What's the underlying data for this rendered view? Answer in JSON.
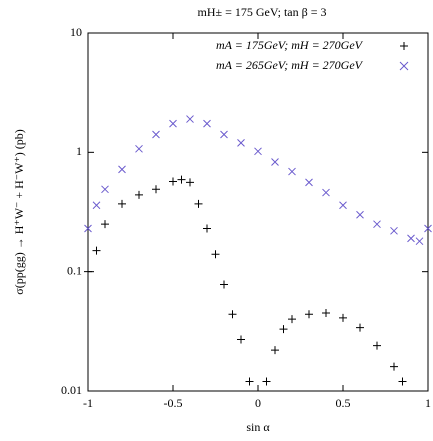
{
  "chart_data": {
    "type": "scatter",
    "title": "mH± = 175 GeV; tan β = 3",
    "x_label": "sin α",
    "y_label": "σ(pp(gg) → H⁺W⁻ + H⁻W⁺) (pb)",
    "log_y": true,
    "legend": "top-right",
    "xlim": [
      -1,
      1
    ],
    "ylim": [
      0.01,
      10
    ],
    "xticks": [
      -1,
      -0.5,
      0,
      0.5,
      1
    ],
    "yticks": [
      0.01,
      0.1,
      1,
      10
    ],
    "series": [
      {
        "name": "mA = 175GeV; mH = 270GeV",
        "color": "#000000",
        "marker": "plus",
        "x": [
          -1,
          -0.95,
          -0.9,
          -0.8,
          -0.7,
          -0.6,
          -0.5,
          -0.45,
          -0.4,
          -0.35,
          -0.3,
          -0.25,
          -0.2,
          -0.15,
          -0.1,
          -0.05,
          0.05,
          0.1,
          0.15,
          0.2,
          0.3,
          0.4,
          0.5,
          0.6,
          0.7,
          0.8,
          0.85
        ],
        "values": [
          0.1,
          0.15,
          0.25,
          0.37,
          0.44,
          0.49,
          0.57,
          0.59,
          0.56,
          0.37,
          0.23,
          0.14,
          0.078,
          0.044,
          0.027,
          0.012,
          0.012,
          0.022,
          0.033,
          0.04,
          0.044,
          0.045,
          0.041,
          0.034,
          0.024,
          0.016,
          0.012
        ]
      },
      {
        "name": "mA = 265GeV; mH = 270GeV",
        "color": "#6a5acd",
        "marker": "cross",
        "x": [
          -1,
          -0.95,
          -0.9,
          -0.8,
          -0.7,
          -0.6,
          -0.5,
          -0.4,
          -0.3,
          -0.2,
          -0.1,
          0,
          0.1,
          0.2,
          0.3,
          0.4,
          0.5,
          0.6,
          0.7,
          0.8,
          0.9,
          0.95,
          1
        ],
        "values": [
          0.23,
          0.36,
          0.49,
          0.72,
          1.07,
          1.41,
          1.74,
          1.9,
          1.74,
          1.41,
          1.2,
          1.02,
          0.83,
          0.69,
          0.56,
          0.46,
          0.36,
          0.3,
          0.25,
          0.22,
          0.19,
          0.18,
          0.23
        ]
      }
    ]
  }
}
